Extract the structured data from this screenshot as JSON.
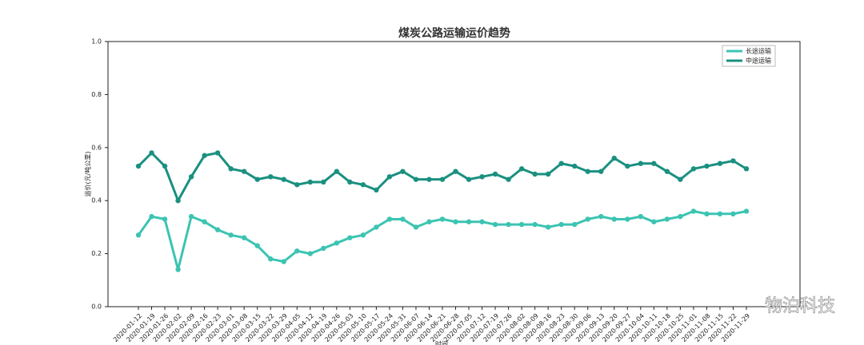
{
  "chart_data": {
    "type": "line",
    "title": "煤炭公路运输运价趋势",
    "x_label": "时间",
    "y_label": "运价(元/吨公里)",
    "categories": [
      "2020-01-12",
      "2020-01-19",
      "2020-01-26",
      "2020-02-02",
      "2020-02-09",
      "2020-02-16",
      "2020-02-23",
      "2020-03-01",
      "2020-03-08",
      "2020-03-15",
      "2020-03-22",
      "2020-03-29",
      "2020-04-05",
      "2020-04-12",
      "2020-04-19",
      "2020-04-26",
      "2020-05-03",
      "2020-05-10",
      "2020-05-17",
      "2020-05-24",
      "2020-05-31",
      "2020-06-07",
      "2020-06-14",
      "2020-06-21",
      "2020-06-28",
      "2020-07-05",
      "2020-07-12",
      "2020-07-19",
      "2020-07-26",
      "2020-08-02",
      "2020-08-09",
      "2020-08-16",
      "2020-08-23",
      "2020-08-30",
      "2020-09-06",
      "2020-09-13",
      "2020-09-20",
      "2020-09-27",
      "2020-10-04",
      "2020-10-11",
      "2020-10-18",
      "2020-10-25",
      "2020-11-01",
      "2020-11-08",
      "2020-11-15",
      "2020-11-22",
      "2020-11-29"
    ],
    "series": [
      {
        "name": "长途运输",
        "color": "#3cc4b2",
        "values": [
          0.27,
          0.34,
          0.33,
          0.14,
          0.34,
          0.32,
          0.29,
          0.27,
          0.26,
          0.23,
          0.18,
          0.17,
          0.21,
          0.2,
          0.22,
          0.24,
          0.26,
          0.27,
          0.3,
          0.33,
          0.33,
          0.3,
          0.32,
          0.33,
          0.32,
          0.32,
          0.32,
          0.31,
          0.31,
          0.31,
          0.31,
          0.3,
          0.31,
          0.31,
          0.33,
          0.34,
          0.33,
          0.33,
          0.34,
          0.32,
          0.33,
          0.34,
          0.36,
          0.35,
          0.35,
          0.35,
          0.36
        ]
      },
      {
        "name": "中途运输",
        "color": "#1a9080",
        "values": [
          0.53,
          0.58,
          0.53,
          0.4,
          0.49,
          0.57,
          0.58,
          0.52,
          0.51,
          0.48,
          0.49,
          0.48,
          0.46,
          0.47,
          0.47,
          0.51,
          0.47,
          0.46,
          0.44,
          0.49,
          0.51,
          0.48,
          0.48,
          0.48,
          0.51,
          0.48,
          0.49,
          0.5,
          0.48,
          0.52,
          0.5,
          0.5,
          0.54,
          0.53,
          0.51,
          0.51,
          0.56,
          0.53,
          0.54,
          0.54,
          0.51,
          0.48,
          0.52,
          0.53,
          0.54,
          0.55,
          0.52
        ]
      }
    ],
    "ylim": [
      0,
      1
    ],
    "yticks": [
      {
        "value": 0,
        "label": "0.0"
      },
      0.2,
      0.4,
      0.6,
      0.8,
      {
        "value": 1,
        "label": "1.0"
      }
    ],
    "legend": "upper right",
    "watermark": "物泊科技"
  }
}
